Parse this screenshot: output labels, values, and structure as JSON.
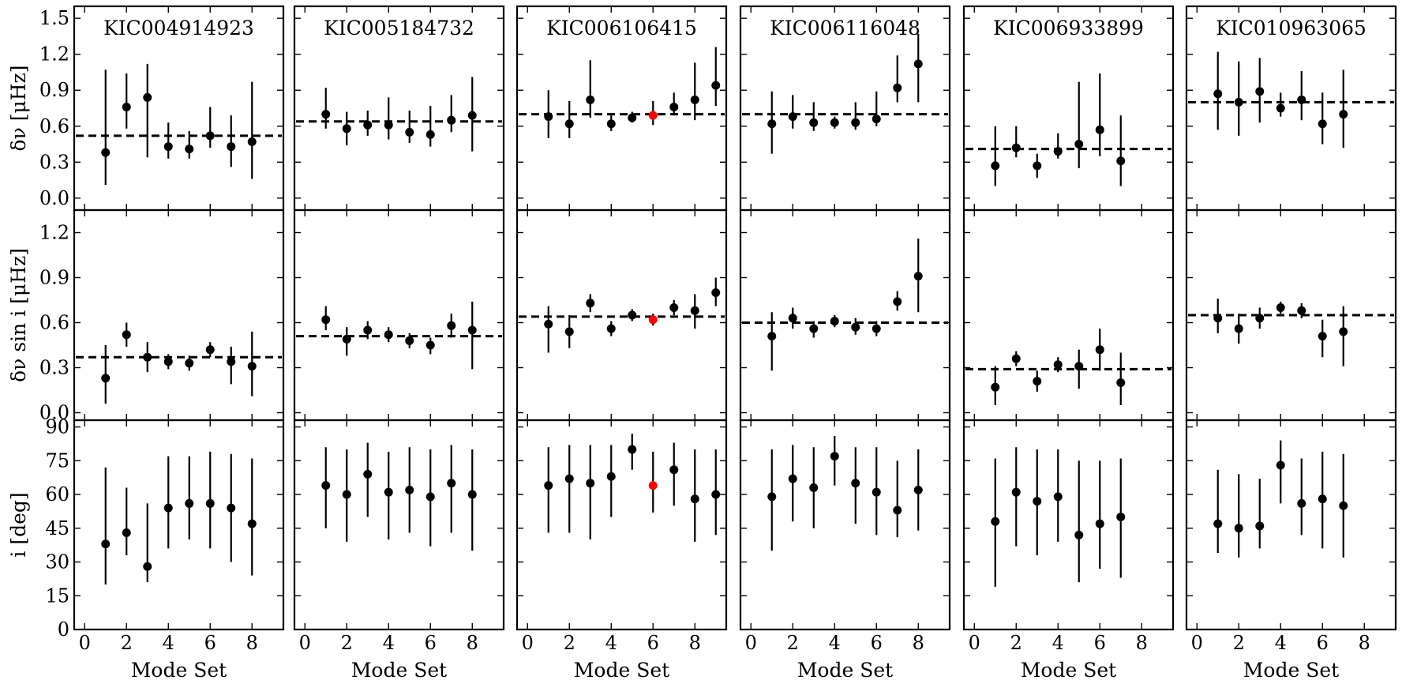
{
  "figure": {
    "row_ylabels": [
      "δν [μHz]",
      "δν sin i [μHz]",
      "i [deg]"
    ],
    "xlabel": "Mode Set"
  },
  "chart_data": [
    {
      "type": "scatter",
      "title": "KIC004914923",
      "xlabel": "Mode Set",
      "xlim": [
        -0.5,
        9.5
      ],
      "xticks": [
        0,
        2,
        4,
        6,
        8
      ],
      "panels": [
        {
          "quantity": "δν",
          "ylabel": "δν [μHz]",
          "ylim": [
            -0.1,
            1.6
          ],
          "yticks": [
            "0.0",
            "0.3",
            "0.6",
            "0.9",
            "1.2",
            "1.5"
          ],
          "mean": 0.52,
          "points": [
            [
              1,
              0.38,
              0.27,
              0.69
            ],
            [
              2,
              0.76,
              0.18,
              0.28
            ],
            [
              3,
              0.84,
              0.5,
              0.28
            ],
            [
              4,
              0.43,
              0.1,
              0.2
            ],
            [
              5,
              0.41,
              0.08,
              0.15
            ],
            [
              6,
              0.52,
              0.1,
              0.24
            ],
            [
              7,
              0.43,
              0.17,
              0.26
            ],
            [
              8,
              0.47,
              0.31,
              0.5
            ]
          ]
        },
        {
          "quantity": "δν sin i",
          "ylabel": "δν sin i [μHz]",
          "ylim": [
            -0.05,
            1.35
          ],
          "yticks": [
            "0.0",
            "0.3",
            "0.6",
            "0.9",
            "1.2"
          ],
          "mean": 0.37,
          "points": [
            [
              1,
              0.23,
              0.17,
              0.22
            ],
            [
              2,
              0.52,
              0.08,
              0.08
            ],
            [
              3,
              0.37,
              0.1,
              0.1
            ],
            [
              4,
              0.34,
              0.05,
              0.05
            ],
            [
              5,
              0.33,
              0.05,
              0.05
            ],
            [
              6,
              0.42,
              0.05,
              0.05
            ],
            [
              7,
              0.34,
              0.15,
              0.1
            ],
            [
              8,
              0.31,
              0.2,
              0.23
            ]
          ]
        },
        {
          "quantity": "i",
          "ylabel": "i [deg]",
          "ylim": [
            0,
            93
          ],
          "yticks": [
            "0",
            "15",
            "30",
            "45",
            "60",
            "75",
            "90"
          ],
          "points": [
            [
              1,
              38,
              18,
              34
            ],
            [
              2,
              43,
              10,
              20
            ],
            [
              3,
              28,
              7,
              28
            ],
            [
              4,
              54,
              18,
              23
            ],
            [
              5,
              56,
              16,
              21
            ],
            [
              6,
              56,
              20,
              23
            ],
            [
              7,
              54,
              24,
              24
            ],
            [
              8,
              47,
              23,
              29
            ]
          ]
        }
      ]
    },
    {
      "type": "scatter",
      "title": "KIC005184732",
      "xlabel": "Mode Set",
      "xlim": [
        -0.5,
        9.5
      ],
      "xticks": [
        0,
        2,
        4,
        6,
        8
      ],
      "panels": [
        {
          "quantity": "δν",
          "mean": 0.64,
          "points": [
            [
              1,
              0.7,
              0.12,
              0.22
            ],
            [
              2,
              0.58,
              0.14,
              0.14
            ],
            [
              3,
              0.61,
              0.09,
              0.12
            ],
            [
              4,
              0.61,
              0.12,
              0.23
            ],
            [
              5,
              0.55,
              0.09,
              0.18
            ],
            [
              6,
              0.53,
              0.1,
              0.24
            ],
            [
              7,
              0.65,
              0.1,
              0.21
            ],
            [
              8,
              0.69,
              0.3,
              0.32
            ]
          ]
        },
        {
          "quantity": "δν sin i",
          "mean": 0.51,
          "points": [
            [
              1,
              0.62,
              0.07,
              0.09
            ],
            [
              2,
              0.49,
              0.11,
              0.08
            ],
            [
              3,
              0.55,
              0.06,
              0.06
            ],
            [
              4,
              0.52,
              0.05,
              0.05
            ],
            [
              5,
              0.48,
              0.05,
              0.05
            ],
            [
              6,
              0.45,
              0.06,
              0.05
            ],
            [
              7,
              0.58,
              0.08,
              0.08
            ],
            [
              8,
              0.55,
              0.26,
              0.19
            ]
          ]
        },
        {
          "quantity": "i",
          "points": [
            [
              1,
              64,
              19,
              17
            ],
            [
              2,
              60,
              21,
              20
            ],
            [
              3,
              69,
              19,
              14
            ],
            [
              4,
              61,
              21,
              18
            ],
            [
              5,
              62,
              19,
              19
            ],
            [
              6,
              59,
              22,
              21
            ],
            [
              7,
              65,
              22,
              17
            ],
            [
              8,
              60,
              25,
              20
            ]
          ]
        }
      ]
    },
    {
      "type": "scatter",
      "title": "KIC006106415",
      "xlabel": "Mode Set",
      "xlim": [
        -0.5,
        9.5
      ],
      "xticks": [
        0,
        2,
        4,
        6,
        8
      ],
      "highlight_color": "#ff0000",
      "panels": [
        {
          "quantity": "δν",
          "mean": 0.7,
          "points": [
            [
              1,
              0.68,
              0.18,
              0.22
            ],
            [
              2,
              0.62,
              0.12,
              0.19
            ],
            [
              3,
              0.82,
              0.15,
              0.33
            ],
            [
              4,
              0.62,
              0.06,
              0.09
            ],
            [
              5,
              0.67,
              0.04,
              0.05
            ],
            [
              6,
              0.69,
              0.08,
              0.12,
              "highlight"
            ],
            [
              7,
              0.76,
              0.07,
              0.12
            ],
            [
              8,
              0.82,
              0.17,
              0.31
            ],
            [
              9,
              0.94,
              0.17,
              0.32
            ]
          ]
        },
        {
          "quantity": "δν sin i",
          "mean": 0.64,
          "points": [
            [
              1,
              0.59,
              0.19,
              0.12
            ],
            [
              2,
              0.54,
              0.11,
              0.11
            ],
            [
              3,
              0.73,
              0.06,
              0.06
            ],
            [
              4,
              0.56,
              0.05,
              0.05
            ],
            [
              5,
              0.65,
              0.04,
              0.04
            ],
            [
              6,
              0.62,
              0.04,
              0.04,
              "highlight"
            ],
            [
              7,
              0.7,
              0.05,
              0.05
            ],
            [
              8,
              0.68,
              0.12,
              0.11
            ],
            [
              9,
              0.8,
              0.09,
              0.1
            ]
          ]
        },
        {
          "quantity": "i",
          "points": [
            [
              1,
              64,
              21,
              17
            ],
            [
              2,
              67,
              24,
              15
            ],
            [
              3,
              65,
              25,
              17
            ],
            [
              4,
              68,
              18,
              14
            ],
            [
              5,
              80,
              9,
              7
            ],
            [
              6,
              64,
              12,
              15,
              "highlight"
            ],
            [
              7,
              71,
              16,
              12
            ],
            [
              8,
              58,
              19,
              22
            ],
            [
              9,
              60,
              18,
              20
            ]
          ]
        }
      ]
    },
    {
      "type": "scatter",
      "title": "KIC006116048",
      "xlabel": "Mode Set",
      "xlim": [
        -0.5,
        9.5
      ],
      "xticks": [
        0,
        2,
        4,
        6,
        8
      ],
      "panels": [
        {
          "quantity": "δν",
          "mean": 0.7,
          "points": [
            [
              1,
              0.62,
              0.25,
              0.27
            ],
            [
              2,
              0.68,
              0.1,
              0.18
            ],
            [
              3,
              0.63,
              0.07,
              0.17
            ],
            [
              4,
              0.63,
              0.05,
              0.05
            ],
            [
              5,
              0.63,
              0.06,
              0.17
            ],
            [
              6,
              0.66,
              0.06,
              0.23
            ],
            [
              7,
              0.92,
              0.12,
              0.27
            ],
            [
              8,
              1.12,
              0.32,
              0.25
            ]
          ]
        },
        {
          "quantity": "δν sin i",
          "mean": 0.6,
          "points": [
            [
              1,
              0.51,
              0.23,
              0.16
            ],
            [
              2,
              0.63,
              0.07,
              0.07
            ],
            [
              3,
              0.56,
              0.06,
              0.05
            ],
            [
              4,
              0.61,
              0.04,
              0.04
            ],
            [
              5,
              0.57,
              0.05,
              0.06
            ],
            [
              6,
              0.56,
              0.05,
              0.05
            ],
            [
              7,
              0.74,
              0.06,
              0.07
            ],
            [
              8,
              0.91,
              0.24,
              0.25
            ]
          ]
        },
        {
          "quantity": "i",
          "points": [
            [
              1,
              59,
              24,
              21
            ],
            [
              2,
              67,
              19,
              15
            ],
            [
              3,
              63,
              18,
              18
            ],
            [
              4,
              77,
              13,
              9
            ],
            [
              5,
              65,
              18,
              16
            ],
            [
              6,
              61,
              19,
              20
            ],
            [
              7,
              53,
              12,
              22
            ],
            [
              8,
              62,
              18,
              18
            ]
          ]
        }
      ]
    },
    {
      "type": "scatter",
      "title": "KIC006933899",
      "xlabel": "Mode Set",
      "xlim": [
        -0.5,
        9.5
      ],
      "xticks": [
        0,
        2,
        4,
        6,
        8
      ],
      "panels": [
        {
          "quantity": "δν",
          "mean": 0.41,
          "points": [
            [
              1,
              0.27,
              0.17,
              0.33
            ],
            [
              2,
              0.42,
              0.08,
              0.18
            ],
            [
              3,
              0.27,
              0.1,
              0.1
            ],
            [
              4,
              0.39,
              0.06,
              0.15
            ],
            [
              5,
              0.45,
              0.2,
              0.52
            ],
            [
              6,
              0.57,
              0.22,
              0.47
            ],
            [
              7,
              0.31,
              0.21,
              0.38
            ]
          ]
        },
        {
          "quantity": "δν sin i",
          "mean": 0.29,
          "points": [
            [
              1,
              0.17,
              0.12,
              0.14
            ],
            [
              2,
              0.36,
              0.05,
              0.05
            ],
            [
              3,
              0.21,
              0.07,
              0.07
            ],
            [
              4,
              0.32,
              0.05,
              0.05
            ],
            [
              5,
              0.31,
              0.15,
              0.11
            ],
            [
              6,
              0.42,
              0.14,
              0.14
            ],
            [
              7,
              0.2,
              0.15,
              0.2
            ]
          ]
        },
        {
          "quantity": "i",
          "points": [
            [
              1,
              48,
              29,
              28
            ],
            [
              2,
              61,
              24,
              20
            ],
            [
              3,
              57,
              24,
              23
            ],
            [
              4,
              59,
              20,
              21
            ],
            [
              5,
              42,
              21,
              33
            ],
            [
              6,
              47,
              20,
              28
            ],
            [
              7,
              50,
              27,
              26
            ]
          ]
        }
      ]
    },
    {
      "type": "scatter",
      "title": "KIC010963065",
      "xlabel": "Mode Set",
      "xlim": [
        -0.5,
        9.5
      ],
      "xticks": [
        0,
        2,
        4,
        6,
        8
      ],
      "panels": [
        {
          "quantity": "δν",
          "mean": 0.8,
          "points": [
            [
              1,
              0.87,
              0.3,
              0.35
            ],
            [
              2,
              0.8,
              0.28,
              0.34
            ],
            [
              3,
              0.89,
              0.26,
              0.28
            ],
            [
              4,
              0.75,
              0.07,
              0.13
            ],
            [
              5,
              0.82,
              0.17,
              0.24
            ],
            [
              6,
              0.62,
              0.17,
              0.26
            ],
            [
              7,
              0.7,
              0.28,
              0.37
            ]
          ]
        },
        {
          "quantity": "δν sin i",
          "mean": 0.65,
          "points": [
            [
              1,
              0.63,
              0.1,
              0.13
            ],
            [
              2,
              0.56,
              0.1,
              0.1
            ],
            [
              3,
              0.63,
              0.07,
              0.07
            ],
            [
              4,
              0.7,
              0.04,
              0.04
            ],
            [
              5,
              0.68,
              0.05,
              0.05
            ],
            [
              6,
              0.51,
              0.14,
              0.11
            ],
            [
              7,
              0.54,
              0.23,
              0.17
            ]
          ]
        },
        {
          "quantity": "i",
          "points": [
            [
              1,
              47,
              13,
              24
            ],
            [
              2,
              45,
              13,
              24
            ],
            [
              3,
              46,
              10,
              21
            ],
            [
              4,
              73,
              17,
              11
            ],
            [
              5,
              56,
              14,
              20
            ],
            [
              6,
              58,
              22,
              21
            ],
            [
              7,
              55,
              23,
              23
            ]
          ]
        }
      ]
    }
  ]
}
